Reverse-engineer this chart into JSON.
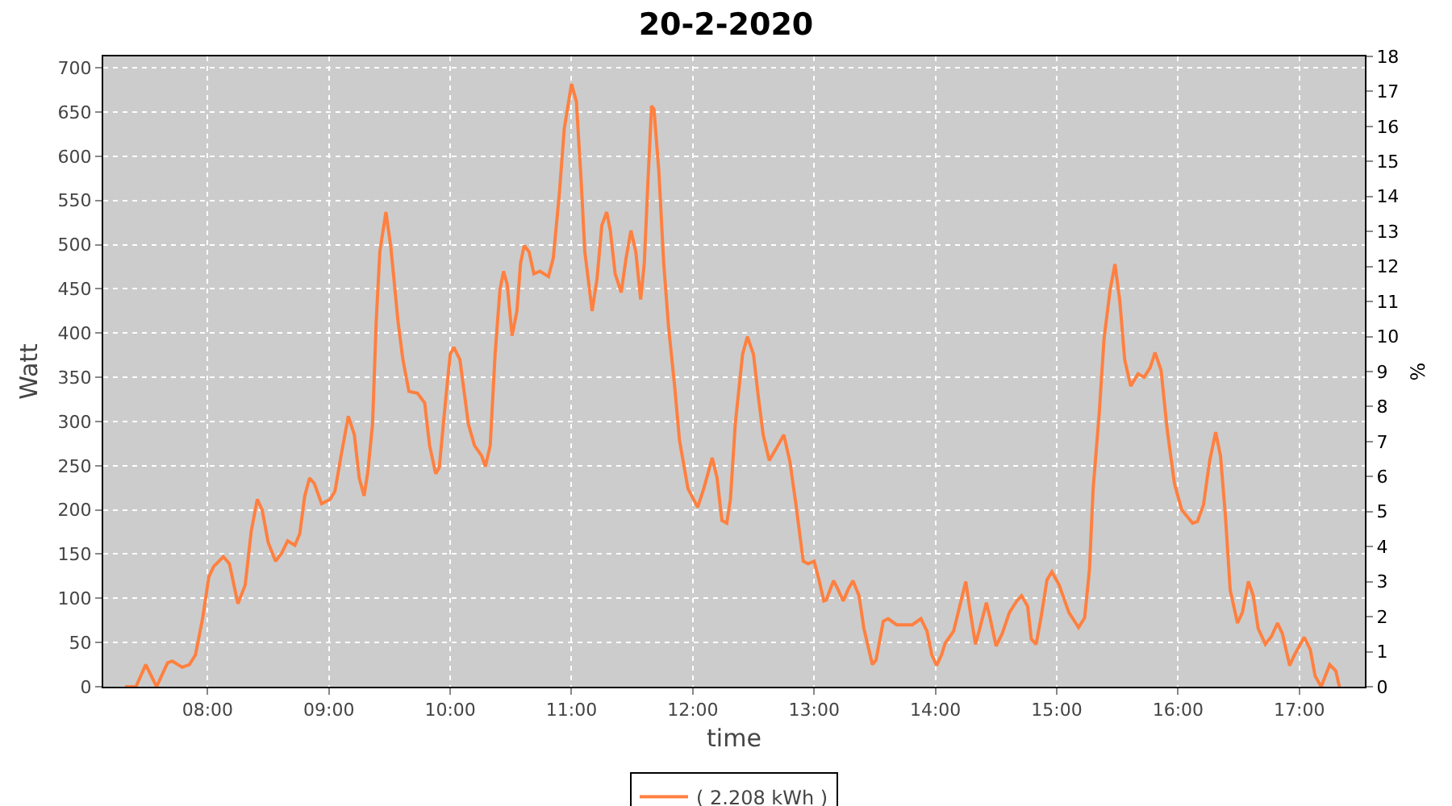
{
  "chart_data": {
    "type": "line",
    "title": "20-2-2020",
    "xlabel": "time",
    "ylabel": "Watt",
    "y2label": "%",
    "xlim": [
      7.14,
      17.54
    ],
    "xticks": [
      {
        "value": 8,
        "label": "08:00"
      },
      {
        "value": 9,
        "label": "09:00"
      },
      {
        "value": 10,
        "label": "10:00"
      },
      {
        "value": 11,
        "label": "11:00"
      },
      {
        "value": 12,
        "label": "12:00"
      },
      {
        "value": 13,
        "label": "13:00"
      },
      {
        "value": 14,
        "label": "14:00"
      },
      {
        "value": 15,
        "label": "15:00"
      },
      {
        "value": 16,
        "label": "16:00"
      },
      {
        "value": 17,
        "label": "17:00"
      }
    ],
    "ylim": [
      0,
      713
    ],
    "yticks": [
      0,
      50,
      100,
      150,
      200,
      250,
      300,
      350,
      400,
      450,
      500,
      550,
      600,
      650,
      700
    ],
    "y2lim": [
      0,
      18
    ],
    "y2ticks": [
      0,
      1,
      2,
      3,
      4,
      5,
      6,
      7,
      8,
      9,
      10,
      11,
      12,
      13,
      14,
      15,
      16,
      17,
      18
    ],
    "grid": true,
    "legend": "bottom",
    "series": [
      {
        "name": "( 2.208 kWh )",
        "color": "#ff8040",
        "x": [
          7.32,
          7.41,
          7.49,
          7.58,
          7.67,
          7.71,
          7.79,
          7.85,
          7.9,
          7.96,
          8.01,
          8.05,
          8.13,
          8.18,
          8.25,
          8.31,
          8.36,
          8.41,
          8.45,
          8.5,
          8.56,
          8.61,
          8.66,
          8.72,
          8.76,
          8.8,
          8.84,
          8.88,
          8.94,
          9.01,
          9.05,
          9.1,
          9.16,
          9.21,
          9.25,
          9.29,
          9.32,
          9.36,
          9.39,
          9.42,
          9.47,
          9.51,
          9.57,
          9.61,
          9.66,
          9.73,
          9.79,
          9.83,
          9.88,
          9.91,
          9.96,
          10.0,
          10.03,
          10.08,
          10.15,
          10.2,
          10.26,
          10.29,
          10.33,
          10.37,
          10.41,
          10.44,
          10.47,
          10.51,
          10.55,
          10.58,
          10.61,
          10.65,
          10.69,
          10.74,
          10.81,
          10.85,
          10.9,
          10.94,
          11.0,
          11.04,
          11.08,
          11.11,
          11.17,
          11.21,
          11.25,
          11.29,
          11.32,
          11.36,
          11.41,
          11.45,
          11.49,
          11.53,
          11.57,
          11.6,
          11.63,
          11.66,
          11.68,
          11.72,
          11.76,
          11.8,
          11.85,
          11.89,
          11.96,
          12.04,
          12.09,
          12.16,
          12.2,
          12.24,
          12.28,
          12.31,
          12.35,
          12.41,
          12.45,
          12.5,
          12.54,
          12.58,
          12.63,
          12.69,
          12.75,
          12.8,
          12.85,
          12.91,
          12.95,
          13.0,
          13.04,
          13.08,
          13.1,
          13.16,
          13.19,
          13.24,
          13.28,
          13.32,
          13.37,
          13.41,
          13.48,
          13.51,
          13.57,
          13.61,
          13.68,
          13.81,
          13.88,
          13.93,
          13.97,
          14.01,
          14.05,
          14.08,
          14.15,
          14.2,
          14.25,
          14.28,
          14.33,
          14.36,
          14.42,
          14.45,
          14.5,
          14.55,
          14.61,
          14.67,
          14.71,
          14.76,
          14.79,
          14.83,
          14.87,
          14.92,
          14.96,
          15.02,
          15.1,
          15.18,
          15.23,
          15.27,
          15.3,
          15.35,
          15.39,
          15.44,
          15.48,
          15.52,
          15.56,
          15.61,
          15.67,
          15.72,
          15.77,
          15.81,
          15.86,
          15.91,
          15.97,
          16.03,
          16.12,
          16.16,
          16.21,
          16.26,
          16.31,
          16.35,
          16.39,
          16.43,
          16.49,
          16.53,
          16.58,
          16.62,
          16.66,
          16.72,
          16.77,
          16.82,
          16.86,
          16.92,
          16.96,
          17.04,
          17.09,
          17.13,
          17.18,
          17.25,
          17.3,
          17.33
        ],
        "values": [
          0,
          0,
          25,
          0,
          27,
          29,
          22,
          25,
          36,
          78,
          124,
          136,
          147,
          139,
          94,
          115,
          176,
          212,
          200,
          163,
          142,
          151,
          165,
          160,
          173,
          215,
          236,
          230,
          207,
          212,
          221,
          261,
          306,
          285,
          236,
          216,
          242,
          297,
          413,
          492,
          537,
          498,
          413,
          370,
          334,
          332,
          321,
          273,
          241,
          248,
          321,
          376,
          384,
          370,
          297,
          273,
          261,
          249,
          273,
          376,
          449,
          470,
          455,
          397,
          425,
          479,
          499,
          492,
          467,
          470,
          464,
          485,
          558,
          631,
          682,
          662,
          571,
          492,
          425,
          461,
          522,
          537,
          516,
          467,
          446,
          485,
          516,
          492,
          438,
          479,
          571,
          657,
          653,
          583,
          479,
          407,
          340,
          279,
          224,
          203,
          224,
          259,
          236,
          188,
          185,
          212,
          297,
          376,
          396,
          376,
          328,
          285,
          256,
          270,
          285,
          255,
          206,
          142,
          139,
          142,
          121,
          97,
          98,
          120,
          112,
          97,
          110,
          120,
          103,
          66,
          25,
          30,
          74,
          77,
          70,
          70,
          77,
          63,
          36,
          24,
          36,
          49,
          63,
          91,
          119,
          91,
          48,
          63,
          95,
          78,
          46,
          60,
          84,
          97,
          103,
          91,
          54,
          48,
          78,
          121,
          130,
          115,
          84,
          67,
          78,
          133,
          224,
          309,
          394,
          449,
          478,
          436,
          370,
          340,
          354,
          350,
          361,
          378,
          358,
          291,
          230,
          200,
          185,
          187,
          206,
          255,
          288,
          261,
          194,
          109,
          72,
          84,
          119,
          103,
          66,
          48,
          57,
          72,
          60,
          24,
          36,
          56,
          42,
          12,
          0,
          25,
          18,
          0
        ]
      }
    ]
  }
}
